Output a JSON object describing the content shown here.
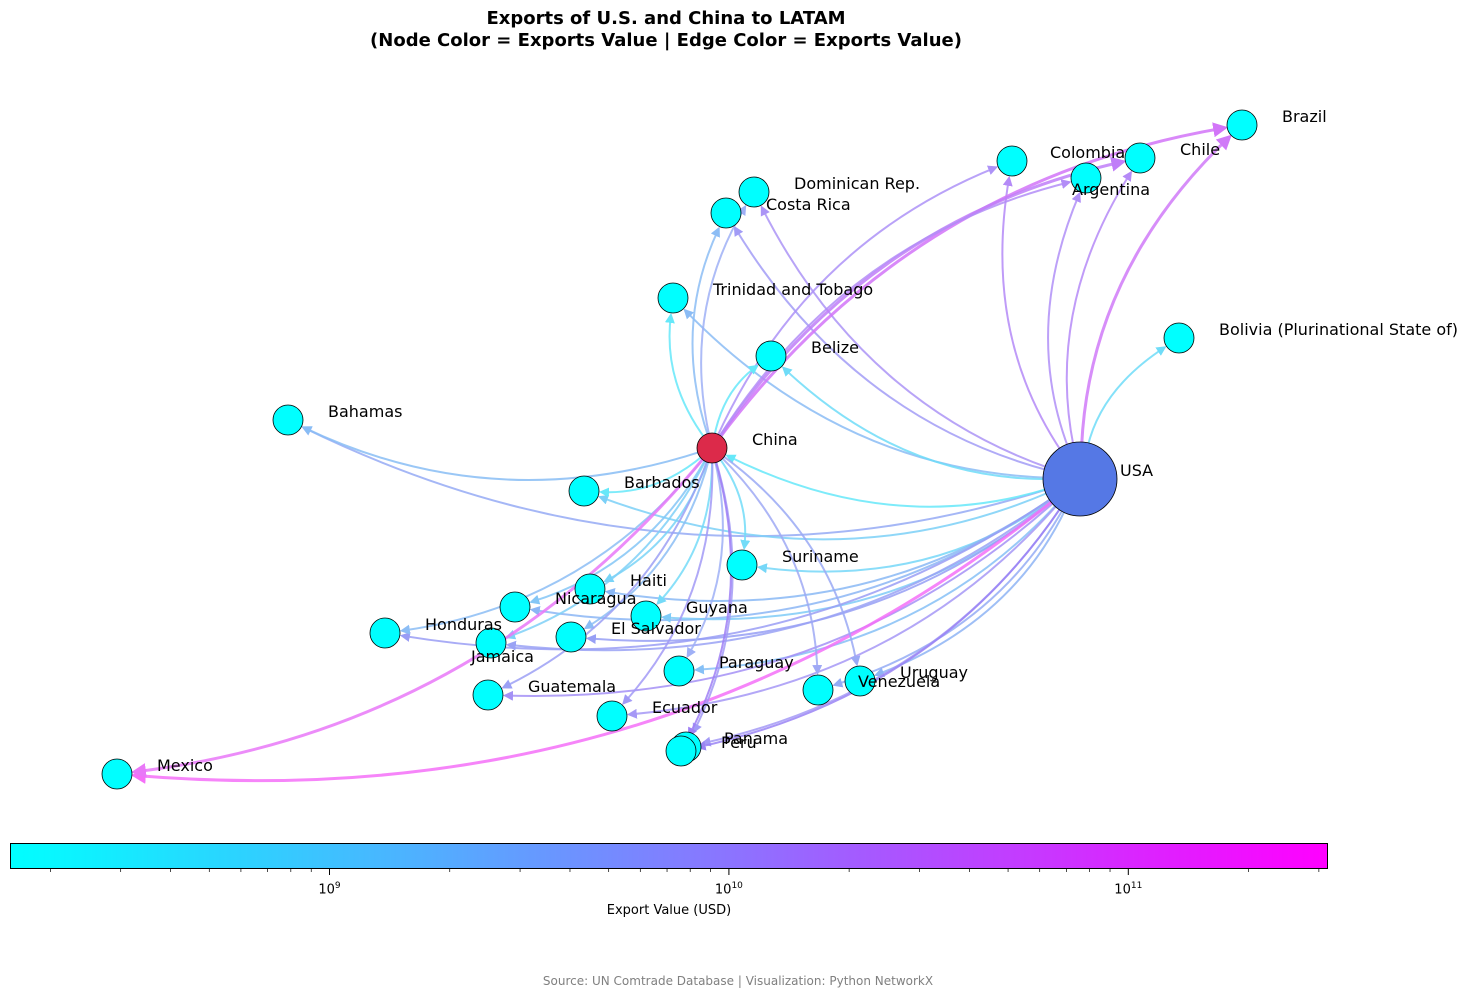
{
  "title": {
    "line1": "Exports of U.S. and China to LATAM",
    "line2": "(Node Color = Exports Value | Edge Color = Exports Value)"
  },
  "colors": {
    "china": "#dc2a4a",
    "usa": "#5578e5",
    "country": "#00ffff",
    "cmap_low": "#00ffff",
    "cmap_high": "#ff00ff"
  },
  "nodes": [
    {
      "id": "USA",
      "label": "USA",
      "type": "usa"
    },
    {
      "id": "China",
      "label": "China",
      "type": "china"
    },
    {
      "id": "Brazil",
      "label": "Brazil",
      "type": "country"
    },
    {
      "id": "Chile",
      "label": "Chile",
      "type": "country"
    },
    {
      "id": "Argentina",
      "label": "Argentina",
      "type": "country"
    },
    {
      "id": "Colombia",
      "label": "Colombia",
      "type": "country"
    },
    {
      "id": "Dominican Rep.",
      "label": "Dominican Rep.",
      "type": "country"
    },
    {
      "id": "Costa Rica",
      "label": "Costa Rica",
      "type": "country"
    },
    {
      "id": "Trinidad and Tobago",
      "label": "Trinidad and Tobago",
      "type": "country"
    },
    {
      "id": "Bolivia",
      "label": "Bolivia (Plurinational State of)",
      "type": "country"
    },
    {
      "id": "Belize",
      "label": "Belize",
      "type": "country"
    },
    {
      "id": "Bahamas",
      "label": "Bahamas",
      "type": "country"
    },
    {
      "id": "Barbados",
      "label": "Barbados",
      "type": "country"
    },
    {
      "id": "Suriname",
      "label": "Suriname",
      "type": "country"
    },
    {
      "id": "Haiti",
      "label": "Haiti",
      "type": "country"
    },
    {
      "id": "Nicaragua",
      "label": "Nicaragua",
      "type": "country"
    },
    {
      "id": "Guyana",
      "label": "Guyana",
      "type": "country"
    },
    {
      "id": "Honduras",
      "label": "Honduras",
      "type": "country"
    },
    {
      "id": "El Salvador",
      "label": "El Salvador",
      "type": "country"
    },
    {
      "id": "Jamaica",
      "label": "Jamaica",
      "type": "country"
    },
    {
      "id": "Paraguay",
      "label": "Paraguay",
      "type": "country"
    },
    {
      "id": "Uruguay",
      "label": "Uruguay",
      "type": "country"
    },
    {
      "id": "Venezuela",
      "label": "Venezuela",
      "type": "country"
    },
    {
      "id": "Guatemala",
      "label": "Guatemala",
      "type": "country"
    },
    {
      "id": "Ecuador",
      "label": "Ecuador",
      "type": "country"
    },
    {
      "id": "Panama",
      "label": "Panama",
      "type": "country"
    },
    {
      "id": "Peru",
      "label": "Peru",
      "type": "country"
    },
    {
      "id": "Mexico",
      "label": "Mexico",
      "type": "country"
    }
  ],
  "edges": [
    {
      "from": "USA",
      "to": "Brazil",
      "color": "#d07af8"
    },
    {
      "from": "USA",
      "to": "Chile",
      "color": "#b58af7"
    },
    {
      "from": "USA",
      "to": "Argentina",
      "color": "#b08ff7"
    },
    {
      "from": "USA",
      "to": "Colombia",
      "color": "#b48af7"
    },
    {
      "from": "USA",
      "to": "Dominican Rep.",
      "color": "#ab94f6"
    },
    {
      "from": "USA",
      "to": "Costa Rica",
      "color": "#a29cf6"
    },
    {
      "from": "USA",
      "to": "Trinidad and Tobago",
      "color": "#8bbcf5"
    },
    {
      "from": "USA",
      "to": "Bolivia",
      "color": "#6fdcf8"
    },
    {
      "from": "USA",
      "to": "Belize",
      "color": "#6fdcf8"
    },
    {
      "from": "USA",
      "to": "Bahamas",
      "color": "#95aaf5"
    },
    {
      "from": "USA",
      "to": "Barbados",
      "color": "#7bd0f7"
    },
    {
      "from": "USA",
      "to": "Suriname",
      "color": "#76d7f8"
    },
    {
      "from": "USA",
      "to": "Haiti",
      "color": "#8ab8f5"
    },
    {
      "from": "USA",
      "to": "Nicaragua",
      "color": "#8cb6f5"
    },
    {
      "from": "USA",
      "to": "Guyana",
      "color": "#7fcbf7"
    },
    {
      "from": "USA",
      "to": "Honduras",
      "color": "#9a9df5"
    },
    {
      "from": "USA",
      "to": "El Salvador",
      "color": "#979ff5"
    },
    {
      "from": "USA",
      "to": "Jamaica",
      "color": "#9aa2f5"
    },
    {
      "from": "USA",
      "to": "Paraguay",
      "color": "#86c0f6"
    },
    {
      "from": "USA",
      "to": "Uruguay",
      "color": "#8eb4f5"
    },
    {
      "from": "USA",
      "to": "Venezuela",
      "color": "#94acf5"
    },
    {
      "from": "USA",
      "to": "Guatemala",
      "color": "#a491f6"
    },
    {
      "from": "USA",
      "to": "Ecuador",
      "color": "#a698f6"
    },
    {
      "from": "USA",
      "to": "Panama",
      "color": "#a49af6"
    },
    {
      "from": "USA",
      "to": "Peru",
      "color": "#9a84f4"
    },
    {
      "from": "USA",
      "to": "Mexico",
      "color": "#f570f8"
    },
    {
      "from": "USA",
      "to": "China",
      "color": "#66e8f9"
    },
    {
      "from": "China",
      "to": "Brazil",
      "color": "#d274f8"
    },
    {
      "from": "China",
      "to": "Chile",
      "color": "#c07ef8"
    },
    {
      "from": "China",
      "to": "Argentina",
      "color": "#b38df7"
    },
    {
      "from": "China",
      "to": "Colombia",
      "color": "#ad92f7"
    },
    {
      "from": "China",
      "to": "Dominican Rep.",
      "color": "#9fb0f6"
    },
    {
      "from": "China",
      "to": "Costa Rica",
      "color": "#8cbdf5"
    },
    {
      "from": "China",
      "to": "Trinidad and Tobago",
      "color": "#66e8f9"
    },
    {
      "from": "China",
      "to": "Belize",
      "color": "#66e8f9"
    },
    {
      "from": "China",
      "to": "Bahamas",
      "color": "#88bdf5"
    },
    {
      "from": "China",
      "to": "Barbados",
      "color": "#66e8f9"
    },
    {
      "from": "China",
      "to": "Suriname",
      "color": "#72dcf8"
    },
    {
      "from": "China",
      "to": "Haiti",
      "color": "#78d4f7"
    },
    {
      "from": "China",
      "to": "Nicaragua",
      "color": "#84c6f6"
    },
    {
      "from": "China",
      "to": "Guyana",
      "color": "#74daf8"
    },
    {
      "from": "China",
      "to": "Honduras",
      "color": "#8cbdf5"
    },
    {
      "from": "China",
      "to": "El Salvador",
      "color": "#8cbdf5"
    },
    {
      "from": "China",
      "to": "Jamaica",
      "color": "#7fd0f7"
    },
    {
      "from": "China",
      "to": "Paraguay",
      "color": "#9fb0f6"
    },
    {
      "from": "China",
      "to": "Uruguay",
      "color": "#9aa9f5"
    },
    {
      "from": "China",
      "to": "Venezuela",
      "color": "#9fa9f5"
    },
    {
      "from": "China",
      "to": "Guatemala",
      "color": "#9ca0f5"
    },
    {
      "from": "China",
      "to": "Ecuador",
      "color": "#a29af6"
    },
    {
      "from": "China",
      "to": "Panama",
      "color": "#a29af6"
    },
    {
      "from": "China",
      "to": "Peru",
      "color": "#9f7ff4"
    },
    {
      "from": "China",
      "to": "Mexico",
      "color": "#e978f8"
    }
  ],
  "colorbar": {
    "label": "Export Value (USD)",
    "ticks": [
      {
        "base": "10",
        "exp": "9"
      },
      {
        "base": "10",
        "exp": "10"
      },
      {
        "base": "10",
        "exp": "11"
      }
    ]
  },
  "source": "Source: UN Comtrade Database | Visualization: Python NetworkX"
}
